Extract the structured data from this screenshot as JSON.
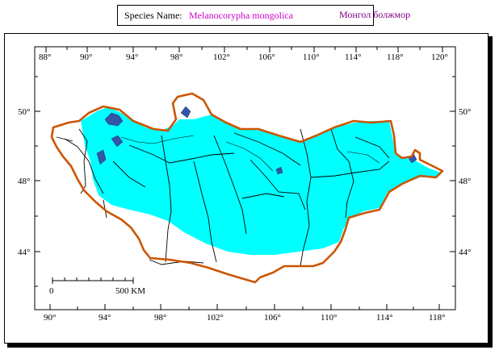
{
  "header": {
    "label": "Species Name:",
    "scientific_name": "Melanocorypha mongolica",
    "local_name": "Монгол болжмор"
  },
  "colors": {
    "range_fill": "#00ffff",
    "border": "#cc5500",
    "lakes": "#3355aa",
    "aimag_lines": "#000000"
  },
  "map": {
    "top_longitudes": [
      "88°",
      "90°",
      "94°",
      "98°",
      "102°",
      "106°",
      "110°",
      "114°",
      "118°",
      "120°"
    ],
    "bottom_longitudes": [
      "90°",
      "94°",
      "98°",
      "102°",
      "106°",
      "110°",
      "114°",
      "118°"
    ],
    "left_latitudes": [
      "50°",
      "48°",
      "44°"
    ],
    "right_latitudes": [
      "50°",
      "48°",
      "44°"
    ],
    "scale_bar": {
      "start_label": "0",
      "end_label": "500 KM"
    }
  }
}
